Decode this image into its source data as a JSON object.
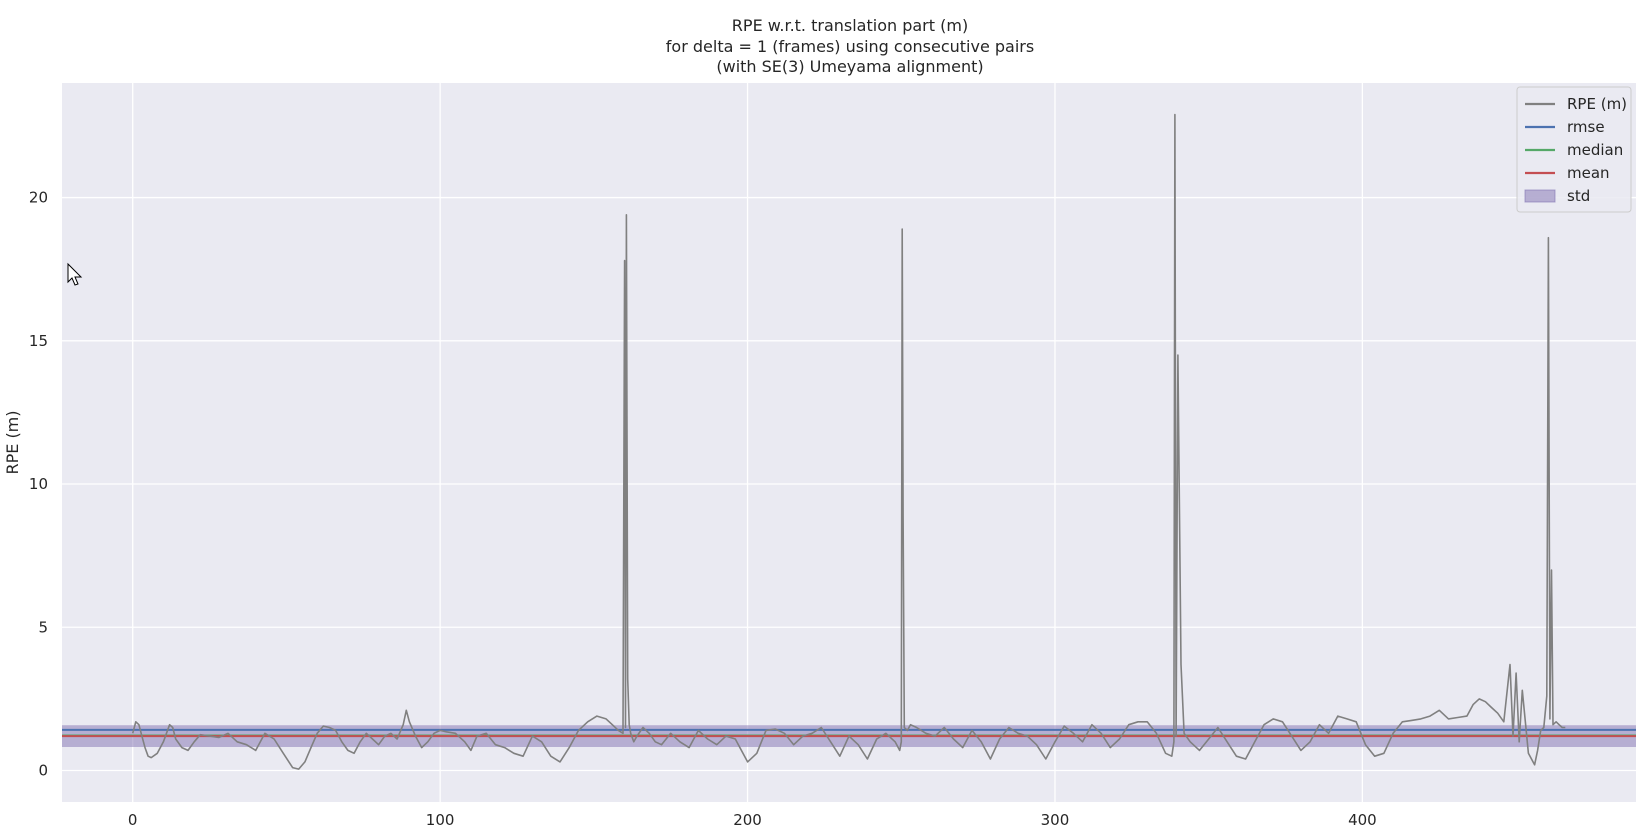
{
  "chart_data": {
    "type": "line",
    "title": [
      "RPE w.r.t. translation part (m)",
      "for delta = 1 (frames) using consecutive pairs",
      "(with SE(3) Umeyama alignment)"
    ],
    "xlabel": "",
    "ylabel": "RPE (m)",
    "xlim": [
      -23,
      489
    ],
    "ylim": [
      -1.1,
      24.0
    ],
    "xticks": [
      0,
      100,
      200,
      300,
      400
    ],
    "yticks": [
      0,
      5,
      10,
      15,
      20
    ],
    "grid": true,
    "background": "#eaeaf2",
    "legend": {
      "placement": "top-right",
      "entries": [
        {
          "label": "RPE (m)",
          "color": "#808080",
          "kind": "line"
        },
        {
          "label": "rmse",
          "color": "#4c72b0",
          "kind": "line"
        },
        {
          "label": "median",
          "color": "#55a868",
          "kind": "line"
        },
        {
          "label": "mean",
          "color": "#c44e52",
          "kind": "line"
        },
        {
          "label": "std",
          "color": "#8172b2",
          "kind": "patch"
        }
      ]
    },
    "statistics": {
      "rmse": 1.42,
      "median": 1.22,
      "mean": 1.2,
      "std_band": [
        0.82,
        1.58
      ]
    },
    "series": [
      {
        "name": "RPE (m)",
        "color": "#808080",
        "x": [
          0,
          1,
          2,
          3,
          4,
          5,
          6,
          8,
          10,
          12,
          13,
          14,
          16,
          18,
          20,
          22,
          25,
          28,
          31,
          34,
          37,
          40,
          43,
          46,
          49,
          52,
          54,
          56,
          58,
          60,
          62,
          64,
          66,
          68,
          70,
          72,
          74,
          76,
          78,
          80,
          82,
          84,
          86,
          88,
          89,
          90,
          92,
          94,
          96,
          98,
          100,
          102,
          105,
          108,
          110,
          112,
          115,
          118,
          121,
          124,
          127,
          130,
          133,
          136,
          139,
          142,
          145,
          148,
          151,
          154,
          156,
          158,
          159.5,
          160,
          160.3,
          160.6,
          161,
          161.5,
          162,
          163,
          164,
          166,
          168,
          170,
          172,
          175,
          178,
          181,
          184,
          187,
          190,
          193,
          196,
          198,
          200,
          203,
          206,
          209,
          212,
          215,
          218,
          221,
          224,
          227,
          230,
          233,
          236,
          239,
          242,
          245,
          248,
          249.5,
          250,
          250.3,
          250.6,
          251,
          252,
          253,
          255,
          258,
          261,
          264,
          267,
          270,
          273,
          276,
          279,
          282,
          285,
          288,
          291,
          294,
          297,
          300,
          303,
          306,
          309,
          312,
          315,
          318,
          321,
          324,
          327,
          330,
          333,
          336,
          338,
          338.7,
          339,
          339.4,
          340,
          341,
          342,
          344,
          347,
          350,
          353,
          356,
          359,
          362,
          365,
          368,
          371,
          374,
          377,
          380,
          383,
          386,
          389,
          392,
          395,
          398,
          401,
          404,
          407,
          410,
          413,
          416,
          419,
          422,
          425,
          428,
          431,
          434,
          436,
          438,
          440,
          442,
          444,
          446,
          448,
          449,
          450,
          451,
          452,
          454,
          456,
          457,
          458,
          459,
          460,
          460.5,
          461,
          461.5,
          462,
          463,
          464,
          465,
          466
        ],
        "values": [
          1.3,
          1.7,
          1.6,
          1.2,
          0.8,
          0.5,
          0.45,
          0.6,
          1.0,
          1.6,
          1.5,
          1.1,
          0.8,
          0.7,
          1.0,
          1.25,
          1.2,
          1.15,
          1.3,
          1.0,
          0.9,
          0.7,
          1.3,
          1.1,
          0.6,
          0.1,
          0.05,
          0.3,
          0.8,
          1.3,
          1.55,
          1.5,
          1.4,
          1.0,
          0.7,
          0.6,
          1.0,
          1.3,
          1.1,
          0.9,
          1.2,
          1.3,
          1.1,
          1.6,
          2.1,
          1.7,
          1.2,
          0.8,
          1.0,
          1.3,
          1.4,
          1.35,
          1.3,
          1.0,
          0.7,
          1.2,
          1.3,
          0.9,
          0.8,
          0.6,
          0.5,
          1.2,
          1.0,
          0.5,
          0.3,
          0.8,
          1.4,
          1.7,
          1.9,
          1.8,
          1.6,
          1.4,
          1.3,
          17.8,
          1.5,
          19.4,
          3.2,
          1.6,
          1.3,
          1.0,
          1.2,
          1.5,
          1.3,
          1.0,
          0.9,
          1.3,
          1.0,
          0.8,
          1.4,
          1.1,
          0.9,
          1.2,
          1.1,
          0.7,
          0.3,
          0.6,
          1.4,
          1.45,
          1.3,
          0.9,
          1.2,
          1.3,
          1.5,
          1.0,
          0.5,
          1.2,
          0.9,
          0.4,
          1.1,
          1.3,
          1.0,
          0.7,
          1.0,
          18.9,
          8.9,
          1.5,
          1.4,
          1.6,
          1.5,
          1.3,
          1.2,
          1.5,
          1.1,
          0.8,
          1.4,
          1.0,
          0.4,
          1.1,
          1.5,
          1.3,
          1.2,
          0.9,
          0.4,
          1.0,
          1.55,
          1.3,
          1.0,
          1.6,
          1.3,
          0.8,
          1.1,
          1.6,
          1.7,
          1.7,
          1.3,
          0.6,
          0.5,
          1.0,
          22.9,
          1.2,
          14.5,
          3.7,
          1.3,
          1.0,
          0.7,
          1.1,
          1.5,
          1.0,
          0.5,
          0.4,
          1.0,
          1.6,
          1.8,
          1.7,
          1.2,
          0.7,
          1.0,
          1.6,
          1.3,
          1.9,
          1.8,
          1.7,
          0.9,
          0.5,
          0.6,
          1.3,
          1.7,
          1.75,
          1.8,
          1.9,
          2.1,
          1.8,
          1.85,
          1.9,
          2.3,
          2.5,
          2.4,
          2.2,
          2.0,
          1.7,
          3.7,
          1.2,
          3.4,
          1.0,
          2.8,
          0.6,
          0.2,
          0.7,
          1.4,
          1.5,
          2.6,
          18.6,
          1.8,
          7.0,
          1.6,
          1.7,
          1.6,
          1.5,
          1.5
        ]
      }
    ]
  }
}
